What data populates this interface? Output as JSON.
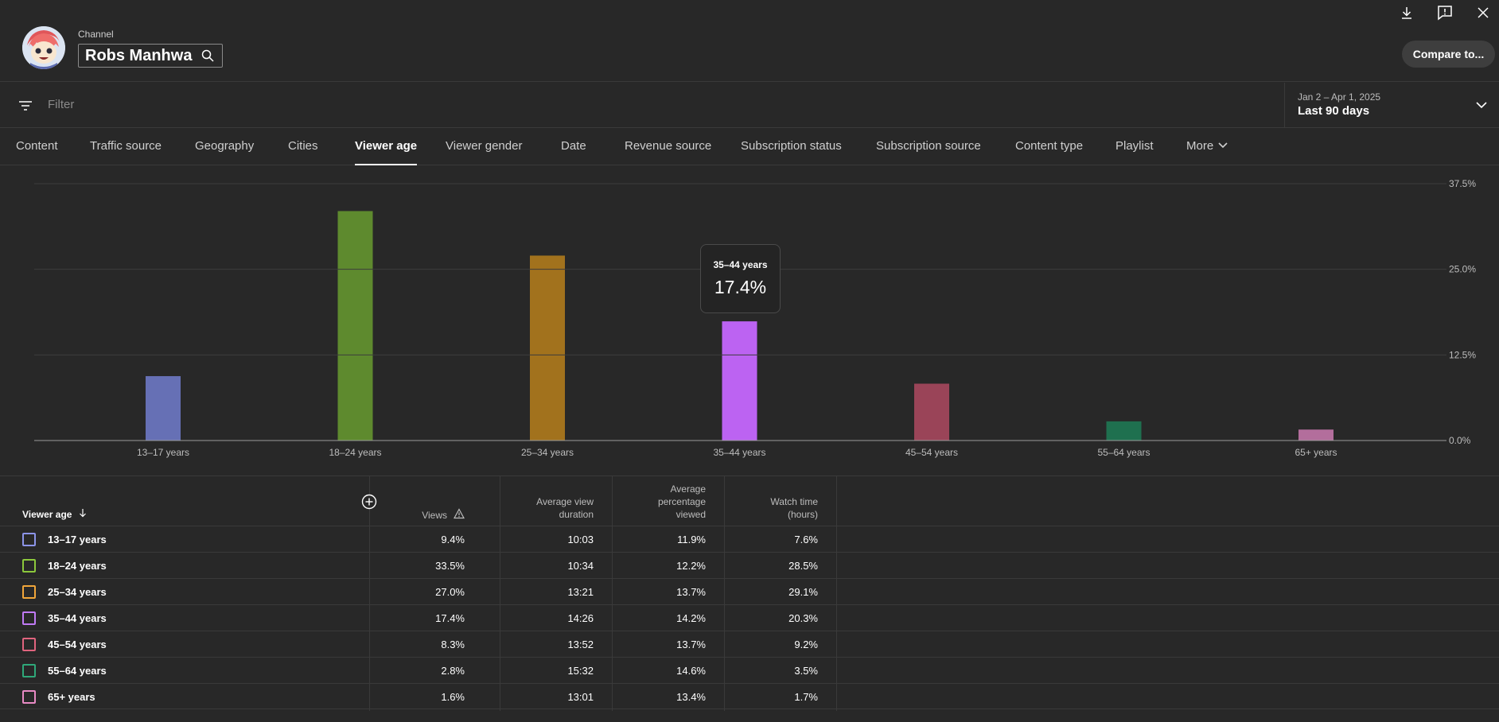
{
  "header": {
    "channel_label": "Channel",
    "channel_name": "Robs Manhwa",
    "compare_label": "Compare to..."
  },
  "filter": {
    "placeholder": "Filter",
    "date_sub": "Jan 2 – Apr 1, 2025",
    "date_main": "Last 90 days"
  },
  "tabs": [
    {
      "label": "Content"
    },
    {
      "label": "Traffic source"
    },
    {
      "label": "Geography"
    },
    {
      "label": "Cities"
    },
    {
      "label": "Viewer age",
      "active": true
    },
    {
      "label": "Viewer gender"
    },
    {
      "label": "Date"
    },
    {
      "label": "Revenue source"
    },
    {
      "label": "Subscription status"
    },
    {
      "label": "Subscription source"
    },
    {
      "label": "Content type"
    },
    {
      "label": "Playlist"
    },
    {
      "label": "More"
    }
  ],
  "chart_data": {
    "type": "bar",
    "categories": [
      "13–17 years",
      "18–24 years",
      "25–34 years",
      "35–44 years",
      "45–54 years",
      "55–64 years",
      "65+ years"
    ],
    "values": [
      9.4,
      33.5,
      27.0,
      17.4,
      8.3,
      2.8,
      1.6
    ],
    "colors": [
      "#6670b5",
      "#5e8a2e",
      "#a2721d",
      "#bc63f2",
      "#9a4458",
      "#1f704f",
      "#b36e9c"
    ],
    "y_ticks": [
      "0.0%",
      "12.5%",
      "25.0%",
      "37.5%"
    ],
    "ylim": [
      0,
      37.5
    ],
    "grid": true
  },
  "tooltip": {
    "label": "35–44 years",
    "value": "17.4%"
  },
  "table": {
    "first_header": "Viewer age",
    "headers": [
      "Views",
      "Average view duration",
      "Average percentage viewed",
      "Watch time (hours)"
    ],
    "rows": [
      {
        "label": "13–17 years",
        "color": "#8c94e8",
        "values": [
          "9.4%",
          "10:03",
          "11.9%",
          "7.6%"
        ]
      },
      {
        "label": "18–24 years",
        "color": "#8cc83c",
        "values": [
          "33.5%",
          "10:34",
          "12.2%",
          "28.5%"
        ]
      },
      {
        "label": "25–34 years",
        "color": "#f0a53a",
        "values": [
          "27.0%",
          "13:21",
          "13.7%",
          "29.1%"
        ]
      },
      {
        "label": "35–44 years",
        "color": "#c07af4",
        "values": [
          "17.4%",
          "14:26",
          "14.2%",
          "20.3%"
        ]
      },
      {
        "label": "45–54 years",
        "color": "#e0647e",
        "values": [
          "8.3%",
          "13:52",
          "13.7%",
          "9.2%"
        ]
      },
      {
        "label": "55–64 years",
        "color": "#2fa879",
        "values": [
          "2.8%",
          "15:32",
          "14.6%",
          "3.5%"
        ]
      },
      {
        "label": "65+ years",
        "color": "#e88ac4",
        "values": [
          "1.6%",
          "13:01",
          "13.4%",
          "1.7%"
        ]
      }
    ]
  }
}
